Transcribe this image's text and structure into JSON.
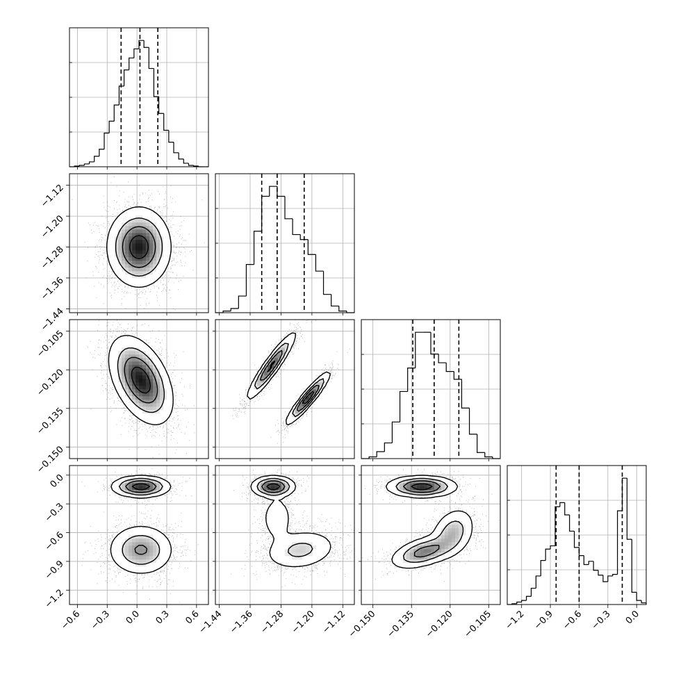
{
  "chart_data": {
    "type": "corner",
    "grid": true,
    "parameters": [
      {
        "range": [
          -0.68,
          0.72
        ],
        "ticks": [
          -0.6,
          -0.3,
          0.0,
          0.3,
          0.6
        ],
        "tick_labels": [
          "−0.6",
          "−0.3",
          "0.0",
          "0.3",
          "0.6"
        ],
        "quantiles": [
          -0.16,
          0.03,
          0.21
        ],
        "hist": {
          "edges": [
            -0.68,
            -0.63,
            -0.58,
            -0.53,
            -0.48,
            -0.43,
            -0.38,
            -0.33,
            -0.28,
            -0.23,
            -0.18,
            -0.13,
            -0.08,
            -0.03,
            0.02,
            0.07,
            0.12,
            0.17,
            0.22,
            0.27,
            0.32,
            0.37,
            0.42,
            0.47,
            0.52,
            0.57,
            0.62,
            0.67,
            0.72
          ],
          "counts": [
            0,
            1,
            2,
            4,
            7,
            15,
            25,
            48,
            65,
            88,
            115,
            138,
            155,
            168,
            180,
            170,
            140,
            100,
            76,
            52,
            35,
            20,
            11,
            5,
            2,
            1,
            0,
            0
          ]
        }
      },
      {
        "range": [
          -1.45,
          -1.09
        ],
        "ticks": [
          -1.44,
          -1.36,
          -1.28,
          -1.2,
          -1.12
        ],
        "tick_labels": [
          "−1.44",
          "−1.36",
          "−1.28",
          "−1.20",
          "−1.12"
        ],
        "quantiles": [
          -1.33,
          -1.29,
          -1.22
        ],
        "hist": {
          "edges": [
            -1.45,
            -1.43,
            -1.41,
            -1.39,
            -1.37,
            -1.35,
            -1.33,
            -1.31,
            -1.29,
            -1.27,
            -1.25,
            -1.23,
            -1.21,
            -1.19,
            -1.17,
            -1.15,
            -1.13,
            -1.11,
            -1.09
          ],
          "counts": [
            0,
            2,
            5,
            20,
            58,
            98,
            140,
            152,
            140,
            113,
            94,
            88,
            70,
            50,
            22,
            8,
            2,
            0
          ]
        }
      },
      {
        "range": [
          -0.1545,
          -0.1005
        ],
        "ticks": [
          -0.15,
          -0.135,
          -0.12,
          -0.105
        ],
        "tick_labels": [
          "−0.150",
          "−0.135",
          "−0.120",
          "−0.105"
        ],
        "quantiles": [
          -0.1345,
          -0.1262,
          -0.1166
        ],
        "hist": {
          "edges": [
            -0.1545,
            -0.1515,
            -0.1485,
            -0.1455,
            -0.1425,
            -0.1395,
            -0.1365,
            -0.1335,
            -0.1305,
            -0.1275,
            -0.1245,
            -0.1215,
            -0.1185,
            -0.1155,
            -0.1125,
            -0.1095,
            -0.1065,
            -0.1035,
            -0.1005
          ],
          "counts": [
            0,
            2,
            8,
            18,
            42,
            77,
            104,
            145,
            145,
            120,
            110,
            100,
            91,
            58,
            28,
            7,
            2,
            0
          ]
        }
      },
      {
        "range": [
          -1.35,
          0.1
        ],
        "ticks": [
          -1.2,
          -0.9,
          -0.6,
          -0.3,
          0.0
        ],
        "tick_labels": [
          "−1.2",
          "−0.9",
          "−0.6",
          "−0.3",
          "0.0"
        ],
        "quantiles": [
          -0.84,
          -0.6,
          -0.15
        ],
        "hist": {
          "edges": [
            -1.35,
            -1.3,
            -1.25,
            -1.2,
            -1.15,
            -1.1,
            -1.05,
            -1.0,
            -0.95,
            -0.9,
            -0.85,
            -0.8,
            -0.75,
            -0.7,
            -0.65,
            -0.6,
            -0.55,
            -0.5,
            -0.45,
            -0.4,
            -0.35,
            -0.3,
            -0.25,
            -0.2,
            -0.15,
            -0.1,
            -0.05,
            0.0,
            0.05,
            0.1
          ],
          "counts": [
            0,
            1,
            3,
            5,
            10,
            20,
            35,
            54,
            68,
            72,
            120,
            125,
            110,
            90,
            70,
            60,
            49,
            53,
            42,
            36,
            28,
            35,
            37,
            115,
            155,
            80,
            15,
            5,
            2
          ]
        }
      }
    ],
    "pairs": [
      {
        "row": 1,
        "col": 0,
        "modes": [
          {
            "mx": 0.02,
            "my": -1.28,
            "sx": 0.14,
            "sy": 0.045,
            "rho": 0.0,
            "w": 1.0
          }
        ]
      },
      {
        "row": 2,
        "col": 0,
        "modes": [
          {
            "mx": 0.04,
            "my": -0.124,
            "sx": 0.14,
            "sy": 0.0075,
            "rho": -0.45,
            "w": 1.0
          }
        ]
      },
      {
        "row": 2,
        "col": 1,
        "modes": [
          {
            "mx": -1.305,
            "my": -0.1185,
            "sx": 0.028,
            "sy": 0.0058,
            "rho": 0.93,
            "w": 0.55
          },
          {
            "mx": -1.21,
            "my": -0.131,
            "sx": 0.025,
            "sy": 0.0045,
            "rho": 0.93,
            "w": 0.45
          }
        ]
      },
      {
        "row": 3,
        "col": 0,
        "modes": [
          {
            "mx": 0.04,
            "my": -0.12,
            "sx": 0.13,
            "sy": 0.05,
            "rho": 0.0,
            "w": 0.4
          },
          {
            "mx": 0.04,
            "my": -0.78,
            "sx": 0.15,
            "sy": 0.12,
            "rho": 0.0,
            "w": 0.6
          }
        ]
      },
      {
        "row": 3,
        "col": 1,
        "modes": [
          {
            "mx": -1.3,
            "my": -0.12,
            "sx": 0.025,
            "sy": 0.05,
            "rho": 0.0,
            "w": 0.4
          },
          {
            "mx": -1.23,
            "my": -0.78,
            "sx": 0.045,
            "sy": 0.1,
            "rho": 0.2,
            "w": 0.45
          },
          {
            "mx": -1.29,
            "my": -0.45,
            "sx": 0.02,
            "sy": 0.12,
            "rho": 0.0,
            "w": 0.15
          }
        ]
      },
      {
        "row": 3,
        "col": 2,
        "modes": [
          {
            "mx": -0.131,
            "my": -0.12,
            "sx": 0.006,
            "sy": 0.05,
            "rho": 0.0,
            "w": 0.4
          },
          {
            "mx": -0.13,
            "my": -0.8,
            "sx": 0.006,
            "sy": 0.08,
            "rho": 0.5,
            "w": 0.35
          },
          {
            "mx": -0.119,
            "my": -0.6,
            "sx": 0.004,
            "sy": 0.12,
            "rho": 0.3,
            "w": 0.25
          }
        ]
      }
    ]
  }
}
